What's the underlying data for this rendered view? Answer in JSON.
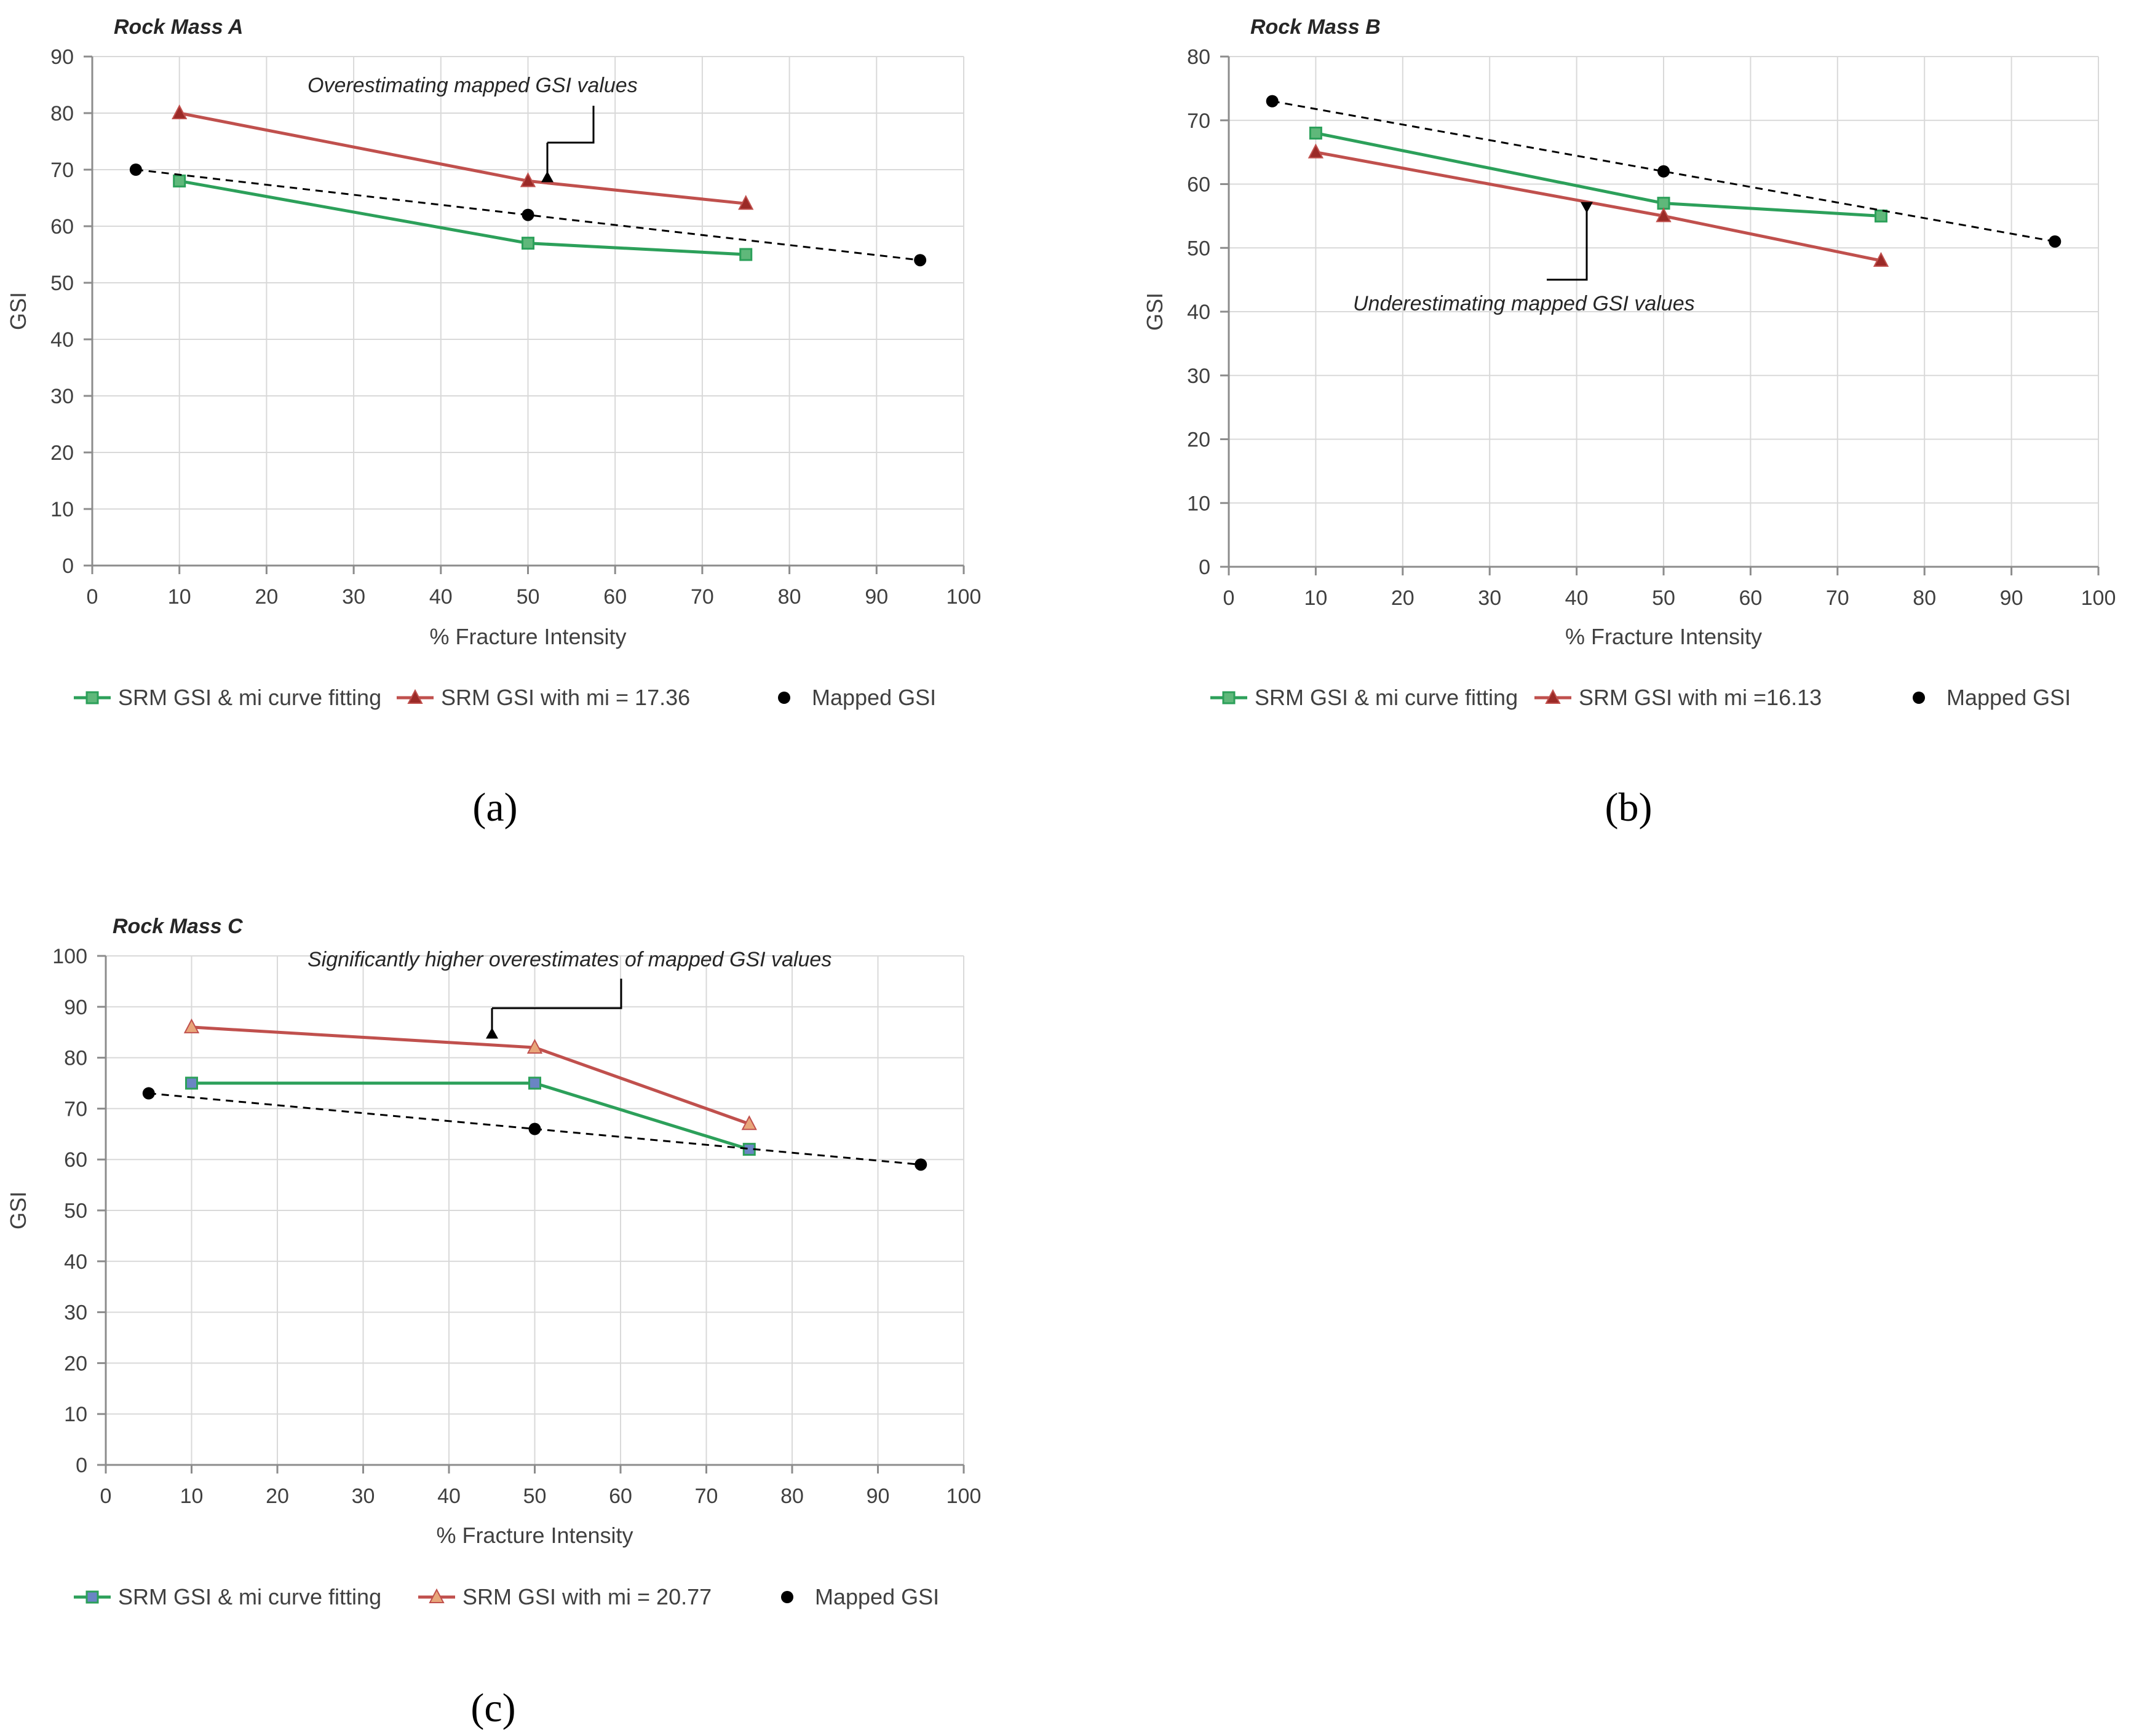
{
  "chart_data": [
    {
      "type": "line",
      "title": "Rock Mass A",
      "caption": "(a)",
      "xlabel": "% Fracture  Intensity",
      "ylabel": "GSI",
      "xlim": [
        0,
        100
      ],
      "ylim": [
        0,
        90
      ],
      "xticks": [
        "0",
        "10",
        "20",
        "30",
        "40",
        "50",
        "60",
        "70",
        "80",
        "90",
        "100"
      ],
      "yticks": [
        "0",
        "10",
        "20",
        "30",
        "40",
        "50",
        "60",
        "70",
        "80",
        "90"
      ],
      "grid": true,
      "series": [
        {
          "name": "SRM GSI & mi curve fitting",
          "color": "#2ca05a",
          "marker": "square",
          "marker_fill": "#5fb87a",
          "x": [
            10,
            50,
            75
          ],
          "y": [
            68,
            57,
            55
          ]
        },
        {
          "name": "SRM GSI with mi = 17.36",
          "color": "#c0504d",
          "marker": "triangle",
          "marker_fill": "#9b2a27",
          "x": [
            10,
            50,
            75
          ],
          "y": [
            80,
            68,
            64
          ]
        },
        {
          "name": "Mapped GSI",
          "color": "#000000",
          "marker": "circle",
          "line": "dashed-trend",
          "x": [
            5,
            50,
            95
          ],
          "y": [
            70,
            62,
            54
          ]
        }
      ],
      "annotation": {
        "text": "Overestimating  mapped  GSI values",
        "target_x": 52,
        "target_y": 68,
        "direction": "down"
      }
    },
    {
      "type": "line",
      "title": "Rock Mass B",
      "caption": "(b)",
      "xlabel": "% Fracture  Intensity",
      "ylabel": "GSI",
      "xlim": [
        0,
        100
      ],
      "ylim": [
        0,
        80
      ],
      "xticks": [
        "0",
        "10",
        "20",
        "30",
        "40",
        "50",
        "60",
        "70",
        "80",
        "90",
        "100"
      ],
      "yticks": [
        "0",
        "10",
        "20",
        "30",
        "40",
        "50",
        "60",
        "70",
        "80"
      ],
      "grid": true,
      "series": [
        {
          "name": "SRM GSI & mi curve fitting",
          "color": "#2ca05a",
          "marker": "square",
          "marker_fill": "#5fb87a",
          "x": [
            10,
            50,
            75
          ],
          "y": [
            68,
            57,
            55
          ]
        },
        {
          "name": "SRM GSI with mi =16.13",
          "color": "#c0504d",
          "marker": "triangle",
          "marker_fill": "#9b2a27",
          "x": [
            10,
            50,
            75
          ],
          "y": [
            65,
            55,
            48
          ]
        },
        {
          "name": "Mapped GSI",
          "color": "#000000",
          "marker": "circle",
          "line": "dashed-trend",
          "x": [
            5,
            50,
            95
          ],
          "y": [
            73,
            62,
            51
          ]
        }
      ],
      "annotation": {
        "text": "Underestimating  mapped  GSI values",
        "target_x": 41,
        "target_y": 57,
        "direction": "up"
      }
    },
    {
      "type": "line",
      "title": "Rock Mass C",
      "caption": "(c)",
      "xlabel": "% Fracture  Intensity",
      "ylabel": "GSI",
      "xlim": [
        0,
        100
      ],
      "ylim": [
        0,
        100
      ],
      "xticks": [
        "0",
        "10",
        "20",
        "30",
        "40",
        "50",
        "60",
        "70",
        "80",
        "90",
        "100"
      ],
      "yticks": [
        "0",
        "10",
        "20",
        "30",
        "40",
        "50",
        "60",
        "70",
        "80",
        "90",
        "100"
      ],
      "grid": true,
      "series": [
        {
          "name": "SRM GSI & mi curve fitting",
          "color": "#2ca05a",
          "marker": "square",
          "marker_fill": "#6a85c4",
          "x": [
            10,
            50,
            75
          ],
          "y": [
            75,
            75,
            62
          ]
        },
        {
          "name": "SRM GSI with mi =  20.77",
          "color": "#c0504d",
          "marker": "triangle",
          "marker_fill": "#e8a67a",
          "x": [
            10,
            50,
            75
          ],
          "y": [
            86,
            82,
            67
          ]
        },
        {
          "name": "Mapped GSI",
          "color": "#000000",
          "marker": "circle",
          "line": "dashed-trend",
          "x": [
            5,
            50,
            95
          ],
          "y": [
            73,
            66,
            59
          ]
        }
      ],
      "annotation": {
        "text": "Significantly  higher  overestimates  of mapped  GSI values",
        "target_x": 45,
        "target_y": 84,
        "direction": "down"
      }
    }
  ]
}
